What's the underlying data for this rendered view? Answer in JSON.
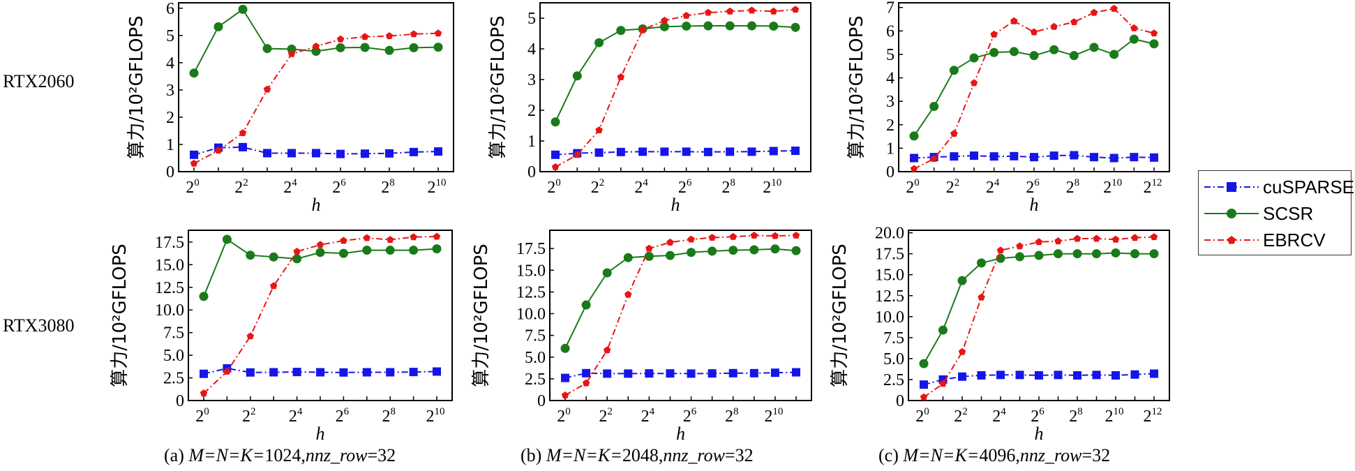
{
  "rows": [
    "RTX2060",
    "RTX3080"
  ],
  "captions": [
    {
      "prefix": "(a) ",
      "mnk": "M=N=K=",
      "size": "1024",
      "sep": ",",
      "nnz": "nnz_row",
      "eq": "=32"
    },
    {
      "prefix": "(b) ",
      "mnk": "M=N=K=",
      "size": "2048",
      "sep": ",",
      "nnz": "nnz_row",
      "eq": "=32"
    },
    {
      "prefix": "(c) ",
      "mnk": "M=N=K=",
      "size": "4096",
      "sep": ",",
      "nnz": "nnz_row",
      "eq": "=32"
    }
  ],
  "legend": [
    {
      "name": "cuSPARSE",
      "color": "#1515e8",
      "marker": "square",
      "dash": "dash-dot"
    },
    {
      "name": "SCSR",
      "color": "#1a7a1a",
      "marker": "circle",
      "dash": "solid"
    },
    {
      "name": "EBRCV",
      "color": "#e81515",
      "marker": "pentagon",
      "dash": "dash-dot"
    }
  ],
  "chart_data": [
    {
      "type": "line",
      "row": "RTX2060",
      "panel": "a",
      "xlabel": "h",
      "ylabel": "算力/10²GFLOPS",
      "x_exponents": [
        0,
        1,
        2,
        3,
        4,
        5,
        6,
        7,
        8,
        9,
        10
      ],
      "x_ticks": [
        0,
        2,
        4,
        6,
        8,
        10
      ],
      "ylim": [
        0,
        6.2
      ],
      "y_ticks": [
        "0",
        "1",
        "2",
        "3",
        "4",
        "5",
        "6"
      ],
      "y_tick_values": [
        0,
        1,
        2,
        3,
        4,
        5,
        6
      ],
      "series": [
        {
          "name": "cuSPARSE",
          "values": [
            0.62,
            0.88,
            0.9,
            0.68,
            0.68,
            0.68,
            0.65,
            0.66,
            0.67,
            0.72,
            0.74
          ]
        },
        {
          "name": "SCSR",
          "values": [
            3.62,
            5.32,
            5.96,
            4.52,
            4.5,
            4.42,
            4.55,
            4.56,
            4.45,
            4.55,
            4.57
          ]
        },
        {
          "name": "EBRCV",
          "values": [
            0.3,
            0.78,
            1.42,
            3.02,
            4.32,
            4.6,
            4.86,
            4.95,
            4.98,
            5.05,
            5.08
          ]
        }
      ]
    },
    {
      "type": "line",
      "row": "RTX2060",
      "panel": "b",
      "xlabel": "h",
      "ylabel": "算力/10²GFLOPS",
      "x_exponents": [
        0,
        1,
        2,
        3,
        4,
        5,
        6,
        7,
        8,
        9,
        10,
        11
      ],
      "x_ticks": [
        0,
        2,
        4,
        6,
        8,
        10
      ],
      "ylim": [
        0,
        5.5
      ],
      "y_ticks": [
        "0",
        "1",
        "2",
        "3",
        "4",
        "5"
      ],
      "y_tick_values": [
        0,
        1,
        2,
        3,
        4,
        5
      ],
      "series": [
        {
          "name": "cuSPARSE",
          "values": [
            0.55,
            0.6,
            0.62,
            0.64,
            0.65,
            0.65,
            0.65,
            0.64,
            0.65,
            0.65,
            0.67,
            0.68
          ]
        },
        {
          "name": "SCSR",
          "values": [
            1.62,
            3.12,
            4.2,
            4.6,
            4.65,
            4.72,
            4.74,
            4.75,
            4.75,
            4.75,
            4.74,
            4.7
          ]
        },
        {
          "name": "EBRCV",
          "values": [
            0.15,
            0.55,
            1.35,
            3.08,
            4.62,
            4.92,
            5.08,
            5.18,
            5.22,
            5.25,
            5.22,
            5.28
          ]
        }
      ]
    },
    {
      "type": "line",
      "row": "RTX2060",
      "panel": "c",
      "xlabel": "h",
      "ylabel": "算力/10²GFLOPS",
      "x_exponents": [
        0,
        1,
        2,
        3,
        4,
        5,
        6,
        7,
        8,
        9,
        10,
        11,
        12
      ],
      "x_ticks": [
        0,
        2,
        4,
        6,
        8,
        10,
        12
      ],
      "ylim": [
        0,
        7.2
      ],
      "y_ticks": [
        "0",
        "1",
        "2",
        "3",
        "4",
        "5",
        "6",
        "7"
      ],
      "y_tick_values": [
        0,
        1,
        2,
        3,
        4,
        5,
        6,
        7
      ],
      "series": [
        {
          "name": "cuSPARSE",
          "values": [
            0.58,
            0.62,
            0.65,
            0.68,
            0.65,
            0.66,
            0.62,
            0.68,
            0.7,
            0.62,
            0.58,
            0.62,
            0.6
          ]
        },
        {
          "name": "SCSR",
          "values": [
            1.52,
            2.78,
            4.32,
            4.85,
            5.08,
            5.12,
            4.95,
            5.2,
            4.95,
            5.3,
            5.0,
            5.65,
            5.45
          ]
        },
        {
          "name": "EBRCV",
          "values": [
            0.12,
            0.55,
            1.62,
            3.78,
            5.85,
            6.42,
            5.95,
            6.18,
            6.38,
            6.78,
            6.95,
            6.12,
            5.9
          ]
        }
      ]
    },
    {
      "type": "line",
      "row": "RTX3080",
      "panel": "a",
      "xlabel": "h",
      "ylabel": "算力/10²GFLOPS",
      "x_exponents": [
        0,
        1,
        2,
        3,
        4,
        5,
        6,
        7,
        8,
        9,
        10
      ],
      "x_ticks": [
        0,
        2,
        4,
        6,
        8,
        10
      ],
      "ylim": [
        0,
        18.8
      ],
      "y_ticks": [
        "0",
        "2.5",
        "5.0",
        "7.5",
        "10.0",
        "12.5",
        "15.0",
        "17.5"
      ],
      "y_tick_values": [
        0,
        2.5,
        5,
        7.5,
        10,
        12.5,
        15,
        17.5
      ],
      "series": [
        {
          "name": "cuSPARSE",
          "values": [
            2.95,
            3.55,
            3.1,
            3.12,
            3.15,
            3.12,
            3.1,
            3.12,
            3.12,
            3.15,
            3.2
          ]
        },
        {
          "name": "SCSR",
          "values": [
            11.5,
            17.8,
            16.05,
            15.85,
            15.65,
            16.35,
            16.25,
            16.6,
            16.6,
            16.6,
            16.75
          ]
        },
        {
          "name": "EBRCV",
          "values": [
            0.8,
            3.2,
            7.1,
            12.65,
            16.45,
            17.2,
            17.65,
            17.95,
            17.75,
            18.05,
            18.1
          ]
        }
      ]
    },
    {
      "type": "line",
      "row": "RTX3080",
      "panel": "b",
      "xlabel": "h",
      "ylabel": "算力/10²GFLOPS",
      "x_exponents": [
        0,
        1,
        2,
        3,
        4,
        5,
        6,
        7,
        8,
        9,
        10,
        11
      ],
      "x_ticks": [
        0,
        2,
        4,
        6,
        8,
        10
      ],
      "ylim": [
        0,
        19.6
      ],
      "y_ticks": [
        "0",
        "2.5",
        "5.0",
        "7.5",
        "10.0",
        "12.5",
        "15.0",
        "17.5"
      ],
      "y_tick_values": [
        0,
        2.5,
        5,
        7.5,
        10,
        12.5,
        15,
        17.5
      ],
      "series": [
        {
          "name": "cuSPARSE",
          "values": [
            2.6,
            3.15,
            3.1,
            3.1,
            3.12,
            3.12,
            3.1,
            3.12,
            3.15,
            3.15,
            3.2,
            3.25
          ]
        },
        {
          "name": "SCSR",
          "values": [
            6.0,
            11.0,
            14.7,
            16.45,
            16.6,
            16.7,
            17.05,
            17.2,
            17.3,
            17.35,
            17.45,
            17.25
          ]
        },
        {
          "name": "EBRCV",
          "values": [
            0.6,
            2.0,
            5.8,
            12.2,
            17.5,
            18.2,
            18.55,
            18.75,
            18.85,
            19.0,
            18.95,
            19.0
          ]
        }
      ]
    },
    {
      "type": "line",
      "row": "RTX3080",
      "panel": "c",
      "xlabel": "h",
      "ylabel": "算力/10²GFLOPS",
      "x_exponents": [
        0,
        1,
        2,
        3,
        4,
        5,
        6,
        7,
        8,
        9,
        10,
        11,
        12
      ],
      "x_ticks": [
        0,
        2,
        4,
        6,
        8,
        10,
        12
      ],
      "ylim": [
        0,
        20.3
      ],
      "y_ticks": [
        "0",
        "2.5",
        "5.0",
        "7.5",
        "10.0",
        "12.5",
        "15.0",
        "17.5",
        "20.0"
      ],
      "y_tick_values": [
        0,
        2.5,
        5,
        7.5,
        10,
        12.5,
        15,
        17.5,
        20
      ],
      "series": [
        {
          "name": "cuSPARSE",
          "values": [
            1.9,
            2.5,
            2.85,
            3.0,
            3.05,
            3.05,
            3.0,
            3.05,
            3.0,
            3.05,
            3.0,
            3.1,
            3.2
          ]
        },
        {
          "name": "SCSR",
          "values": [
            4.4,
            8.4,
            14.3,
            16.4,
            16.95,
            17.15,
            17.3,
            17.5,
            17.5,
            17.5,
            17.6,
            17.5,
            17.5
          ]
        },
        {
          "name": "EBRCV",
          "values": [
            0.4,
            2.0,
            5.8,
            12.3,
            17.9,
            18.4,
            18.9,
            19.0,
            19.3,
            19.3,
            19.2,
            19.4,
            19.5
          ]
        }
      ]
    }
  ]
}
